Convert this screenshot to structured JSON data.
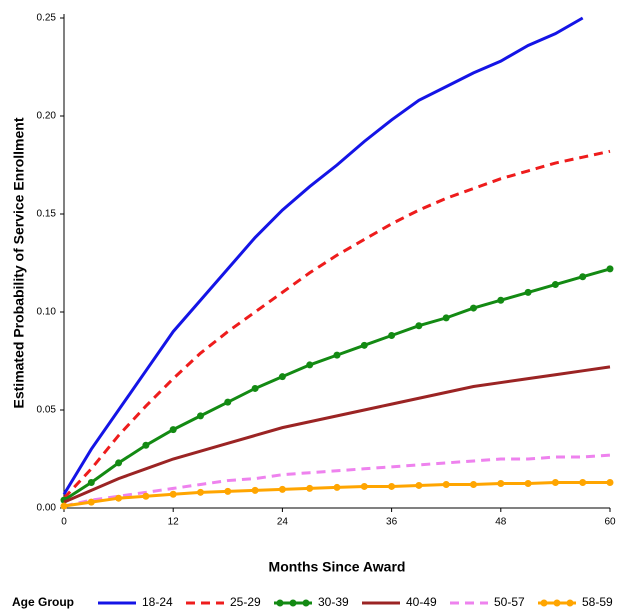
{
  "chart_data": {
    "type": "line",
    "x_label": "Months Since Award",
    "y_label": "Estimated Probability of Service Enrollment",
    "legend_title": "Age Group",
    "legend": "bottom",
    "x": [
      0,
      3,
      6,
      9,
      12,
      15,
      18,
      21,
      24,
      27,
      30,
      33,
      36,
      39,
      42,
      45,
      48,
      51,
      54,
      57,
      60
    ],
    "xlim": [
      0,
      60
    ],
    "xticks": [
      0,
      12,
      24,
      36,
      48,
      60
    ],
    "ylim": [
      0,
      0.25
    ],
    "yticks": [
      {
        "value": 0,
        "label": "0.00"
      },
      {
        "value": 0.05,
        "label": "0.05"
      },
      {
        "value": 0.1,
        "label": "0.10"
      },
      {
        "value": 0.15,
        "label": "0.15"
      },
      {
        "value": 0.2,
        "label": "0.20"
      },
      {
        "value": 0.25,
        "label": "0.25"
      }
    ],
    "series": [
      {
        "name": "18-24",
        "color": "#1414e6",
        "line_style": "solid",
        "marker": false,
        "values": [
          0.007,
          0.03,
          0.05,
          0.07,
          0.09,
          0.106,
          0.122,
          0.138,
          0.152,
          0.164,
          0.175,
          0.187,
          0.198,
          0.208,
          0.215,
          0.222,
          0.228,
          0.236,
          0.242,
          0.25,
          null
        ]
      },
      {
        "name": "25-29",
        "color": "#ee1c1c",
        "line_style": "dashed",
        "marker": false,
        "values": [
          0.005,
          0.02,
          0.037,
          0.052,
          0.066,
          0.079,
          0.09,
          0.1,
          0.11,
          0.12,
          0.129,
          0.137,
          0.145,
          0.152,
          0.158,
          0.163,
          0.168,
          0.172,
          0.176,
          0.179,
          0.182
        ]
      },
      {
        "name": "30-39",
        "color": "#138a13",
        "line_style": "solid",
        "marker": true,
        "values": [
          0.004,
          0.013,
          0.023,
          0.032,
          0.04,
          0.047,
          0.054,
          0.061,
          0.067,
          0.073,
          0.078,
          0.083,
          0.088,
          0.093,
          0.097,
          0.102,
          0.106,
          0.11,
          0.114,
          0.118,
          0.122
        ]
      },
      {
        "name": "40-49",
        "color": "#9b2424",
        "line_style": "solid",
        "marker": false,
        "values": [
          0.003,
          0.009,
          0.015,
          0.02,
          0.025,
          0.029,
          0.033,
          0.037,
          0.041,
          0.044,
          0.047,
          0.05,
          0.053,
          0.056,
          0.059,
          0.062,
          0.064,
          0.066,
          0.068,
          0.07,
          0.072
        ]
      },
      {
        "name": "50-57",
        "color": "#ee82ee",
        "line_style": "dashed",
        "marker": false,
        "values": [
          0.001,
          0.004,
          0.006,
          0.008,
          0.01,
          0.012,
          0.014,
          0.015,
          0.017,
          0.018,
          0.019,
          0.02,
          0.021,
          0.022,
          0.023,
          0.024,
          0.025,
          0.025,
          0.026,
          0.026,
          0.027
        ]
      },
      {
        "name": "58-59",
        "color": "#ffa500",
        "line_style": "solid",
        "marker": true,
        "values": [
          0.001,
          0.003,
          0.005,
          0.006,
          0.007,
          0.008,
          0.0085,
          0.009,
          0.0095,
          0.01,
          0.0105,
          0.011,
          0.011,
          0.0115,
          0.012,
          0.012,
          0.0125,
          0.0125,
          0.013,
          0.013,
          0.013
        ]
      }
    ]
  }
}
